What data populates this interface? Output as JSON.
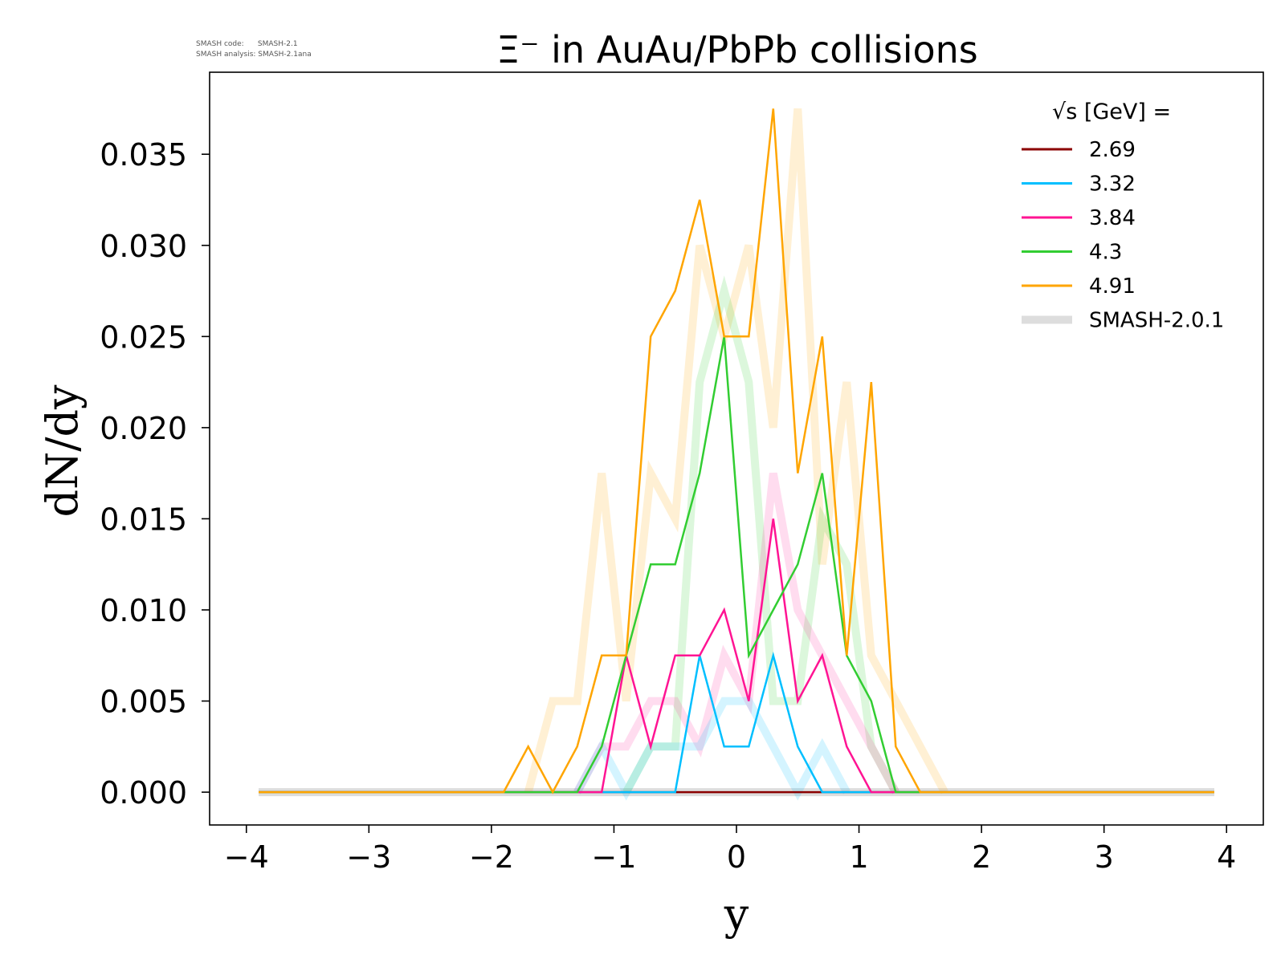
{
  "meta_lines": [
    "SMASH code:      SMASH-2.1",
    "SMASH analysis: SMASH-2.1ana"
  ],
  "chart_data": {
    "type": "line",
    "title": "Ξ⁻ in AuAu/PbPb collisions",
    "xlabel": "y",
    "ylabel": "dN/dy",
    "xlim": [
      -4.3,
      4.3
    ],
    "ylim": [
      -0.0018,
      0.0395
    ],
    "x_ticks": [
      -4,
      -3,
      -2,
      -1,
      0,
      1,
      2,
      3,
      4
    ],
    "x_tick_labels": [
      "−4",
      "−3",
      "−2",
      "−1",
      "0",
      "1",
      "2",
      "3",
      "4"
    ],
    "y_ticks": [
      0,
      0.005,
      0.01,
      0.015,
      0.02,
      0.025,
      0.03,
      0.035
    ],
    "y_tick_labels": [
      "0.000",
      "0.005",
      "0.010",
      "0.015",
      "0.020",
      "0.025",
      "0.030",
      "0.035"
    ],
    "grid": false,
    "legend": {
      "title": "√s [GeV] =",
      "placement": "top-right"
    },
    "x": [
      -3.9,
      -3.7,
      -3.5,
      -3.3,
      -3.1,
      -2.9,
      -2.7,
      -2.5,
      -2.3,
      -2.1,
      -1.9,
      -1.7,
      -1.5,
      -1.3,
      -1.1,
      -0.9,
      -0.7,
      -0.5,
      -0.3,
      -0.1,
      0.1,
      0.3,
      0.5,
      0.7,
      0.9,
      1.1,
      1.3,
      1.5,
      1.7,
      1.9,
      2.1,
      2.3,
      2.5,
      2.7,
      2.9,
      3.1,
      3.3,
      3.5,
      3.7,
      3.9
    ],
    "series": [
      {
        "name": "SMASH-2.0.1",
        "group": "reference",
        "color": "#dddddd",
        "width": 10,
        "opacity": 1,
        "values": [
          0,
          0,
          0,
          0,
          0,
          0,
          0,
          0,
          0,
          0,
          0,
          0,
          0,
          0,
          0,
          0,
          0,
          0,
          0,
          0,
          0,
          0,
          0,
          0,
          0,
          0,
          0,
          0,
          0,
          0,
          0,
          0,
          0,
          0,
          0,
          0,
          0,
          0,
          0,
          0
        ]
      },
      {
        "name": "4.91 (SMASH-2.0.1)",
        "group": "reference",
        "color": "#ffa500",
        "width": 10,
        "opacity": 0.17,
        "x": [
          -1.7,
          -1.5,
          -1.3,
          -1.1,
          -0.9,
          -0.7,
          -0.5,
          -0.3,
          -0.1,
          0.1,
          0.3,
          0.5,
          0.7,
          0.9,
          1.1,
          1.3,
          1.5,
          1.7
        ],
        "values": [
          0,
          0.005,
          0.005,
          0.0175,
          0.005,
          0.0175,
          0.015,
          0.03,
          0.025,
          0.03,
          0.02,
          0.0375,
          0.0125,
          0.0225,
          0.0075,
          0.005,
          0.0025,
          0
        ]
      },
      {
        "name": "4.3 (SMASH-2.0.1)",
        "group": "reference",
        "color": "#32cd32",
        "width": 10,
        "opacity": 0.17,
        "x": [
          -0.9,
          -0.7,
          -0.5,
          -0.3,
          -0.1,
          0.1,
          0.3,
          0.5,
          0.7,
          0.9,
          1.1,
          1.3
        ],
        "values": [
          0,
          0.0025,
          0.0025,
          0.0225,
          0.0275,
          0.0225,
          0.005,
          0.005,
          0.015,
          0.0125,
          0.0025,
          0
        ]
      },
      {
        "name": "3.84 (SMASH-2.0.1)",
        "group": "reference",
        "color": "#ff1493",
        "width": 10,
        "opacity": 0.15,
        "x": [
          -1.3,
          -1.1,
          -0.9,
          -0.7,
          -0.5,
          -0.3,
          -0.1,
          0.1,
          0.3,
          0.5,
          0.7,
          0.9,
          1.1,
          1.3
        ],
        "values": [
          0,
          0.0025,
          0.0025,
          0.005,
          0.005,
          0.0025,
          0.0075,
          0.005,
          0.0175,
          0.01,
          0.0075,
          0.005,
          0.0025,
          0
        ]
      },
      {
        "name": "3.32 (SMASH-2.0.1)",
        "group": "reference",
        "color": "#00bfff",
        "width": 10,
        "opacity": 0.17,
        "x": [
          -1.3,
          -1.1,
          -0.9,
          -0.7,
          -0.5,
          -0.3,
          -0.1,
          0.1,
          0.3,
          0.5,
          0.7,
          0.9
        ],
        "values": [
          0,
          0.0025,
          0,
          0.0025,
          0.0025,
          0.0025,
          0.005,
          0.005,
          0.0025,
          0,
          0.0025,
          0
        ]
      },
      {
        "name": "2.69",
        "group": "current",
        "color": "#8b0000",
        "width": 2.5,
        "opacity": 1,
        "values": [
          0,
          0,
          0,
          0,
          0,
          0,
          0,
          0,
          0,
          0,
          0,
          0,
          0,
          0,
          0,
          0,
          0,
          0,
          0,
          0,
          0,
          0,
          0,
          0,
          0,
          0,
          0,
          0,
          0,
          0,
          0,
          0,
          0,
          0,
          0,
          0,
          0,
          0,
          0,
          0
        ]
      },
      {
        "name": "3.32",
        "group": "current",
        "color": "#00bfff",
        "width": 2.5,
        "opacity": 1,
        "values": [
          0,
          0,
          0,
          0,
          0,
          0,
          0,
          0,
          0,
          0,
          0,
          0,
          0,
          0,
          0,
          0,
          0,
          0,
          0.0075,
          0.0025,
          0.0025,
          0.0075,
          0.0025,
          0,
          0,
          0,
          0,
          0,
          0,
          0,
          0,
          0,
          0,
          0,
          0,
          0,
          0,
          0,
          0,
          0
        ]
      },
      {
        "name": "3.84",
        "group": "current",
        "color": "#ff1493",
        "width": 2.5,
        "opacity": 1,
        "values": [
          0,
          0,
          0,
          0,
          0,
          0,
          0,
          0,
          0,
          0,
          0,
          0,
          0,
          0,
          0,
          0.0075,
          0.0025,
          0.0075,
          0.0075,
          0.01,
          0.005,
          0.015,
          0.005,
          0.0075,
          0.0025,
          0,
          0,
          0,
          0,
          0,
          0,
          0,
          0,
          0,
          0,
          0,
          0,
          0,
          0,
          0
        ]
      },
      {
        "name": "4.3",
        "group": "current",
        "color": "#32cd32",
        "width": 2.5,
        "opacity": 1,
        "values": [
          0,
          0,
          0,
          0,
          0,
          0,
          0,
          0,
          0,
          0,
          0,
          0,
          0,
          0,
          0.0025,
          0.0075,
          0.0125,
          0.0125,
          0.0175,
          0.025,
          0.0075,
          0.01,
          0.0125,
          0.0175,
          0.0075,
          0.005,
          0,
          0,
          0,
          0,
          0,
          0,
          0,
          0,
          0,
          0,
          0,
          0,
          0,
          0
        ]
      },
      {
        "name": "4.91",
        "group": "current",
        "color": "#ffa500",
        "width": 2.5,
        "opacity": 1,
        "values": [
          0,
          0,
          0,
          0,
          0,
          0,
          0,
          0,
          0,
          0,
          0,
          0.0025,
          0,
          0.0025,
          0.0075,
          0.0075,
          0.025,
          0.0275,
          0.0325,
          0.025,
          0.025,
          0.0375,
          0.0175,
          0.025,
          0.0075,
          0.0225,
          0.0025,
          0,
          0,
          0,
          0,
          0,
          0,
          0,
          0,
          0,
          0,
          0,
          0,
          0
        ]
      }
    ],
    "legend_entries": [
      {
        "label": "2.69",
        "color": "#8b0000",
        "style": "thin"
      },
      {
        "label": "3.32",
        "color": "#00bfff",
        "style": "thin"
      },
      {
        "label": "3.84",
        "color": "#ff1493",
        "style": "thin"
      },
      {
        "label": "4.3",
        "color": "#32cd32",
        "style": "thin"
      },
      {
        "label": "4.91",
        "color": "#ffa500",
        "style": "thin"
      },
      {
        "label": "SMASH-2.0.1",
        "color": "#dddddd",
        "style": "thick"
      }
    ]
  }
}
